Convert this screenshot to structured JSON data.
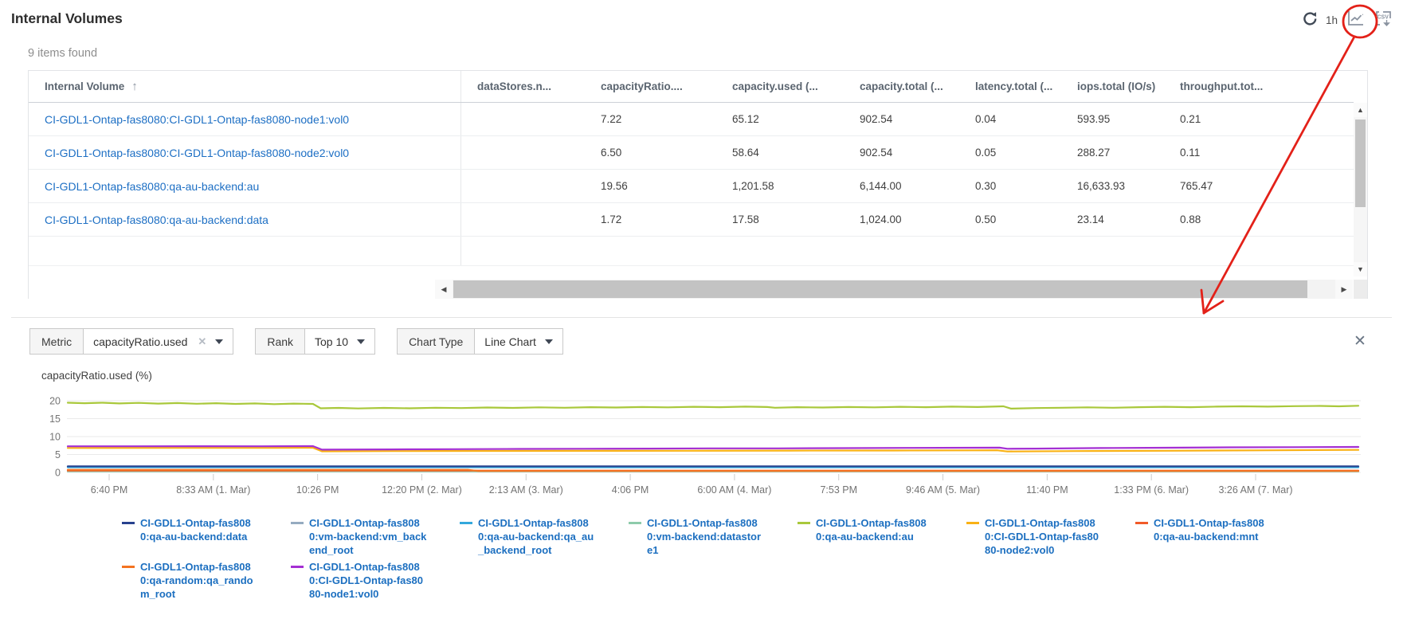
{
  "header": {
    "title": "Internal Volumes",
    "refresh_interval": "1h"
  },
  "table": {
    "items_found": "9 items found",
    "columns": [
      "Internal Volume",
      "dataStores.n...",
      "capacityRatio....",
      "capacity.used (...",
      "capacity.total (...",
      "latency.total (...",
      "iops.total (IO/s)",
      "throughput.tot..."
    ],
    "sort_column": "Internal Volume",
    "sort_direction": "asc",
    "rows": [
      {
        "name": "CI-GDL1-Ontap-fas8080:CI-GDL1-Ontap-fas8080-node1:vol0",
        "values": [
          "",
          "7.22",
          "65.12",
          "902.54",
          "0.04",
          "593.95",
          "0.21"
        ]
      },
      {
        "name": "CI-GDL1-Ontap-fas8080:CI-GDL1-Ontap-fas8080-node2:vol0",
        "values": [
          "",
          "6.50",
          "58.64",
          "902.54",
          "0.05",
          "288.27",
          "0.11"
        ]
      },
      {
        "name": "CI-GDL1-Ontap-fas8080:qa-au-backend:au",
        "values": [
          "",
          "19.56",
          "1,201.58",
          "6,144.00",
          "0.30",
          "16,633.93",
          "765.47"
        ]
      },
      {
        "name": "CI-GDL1-Ontap-fas8080:qa-au-backend:data",
        "values": [
          "",
          "1.72",
          "17.58",
          "1,024.00",
          "0.50",
          "23.14",
          "0.88"
        ]
      }
    ]
  },
  "controls": {
    "metric_label": "Metric",
    "metric_value": "capacityRatio.used",
    "rank_label": "Rank",
    "rank_value": "Top 10",
    "chart_type_label": "Chart Type",
    "chart_type_value": "Line Chart"
  },
  "chart_data": {
    "type": "line",
    "ylabel": "capacityRatio.used (%)",
    "ylim": [
      0,
      20
    ],
    "yticks": [
      0,
      5,
      10,
      15,
      20
    ],
    "grid": true,
    "legend_position": "bottom",
    "x_tick_labels": [
      "6:40 PM",
      "8:33 AM (1. Mar)",
      "10:26 PM",
      "12:20 PM (2. Mar)",
      "2:13 AM (3. Mar)",
      "4:06 PM",
      "6:00 AM (4. Mar)",
      "7:53 PM",
      "9:46 AM (5. Mar)",
      "11:40 PM",
      "1:33 PM (6. Mar)",
      "3:26 AM (7. Mar)"
    ],
    "series": [
      {
        "name": "CI-GDL1-Ontap-fas8080:vm-backend:datastore1",
        "color": "#8ecbab",
        "points": [
          [
            0,
            0.3
          ],
          [
            1,
            0.3
          ]
        ]
      },
      {
        "name": "CI-GDL1-Ontap-fas8080:qa-au-backend:mnt",
        "color": "#f15a29",
        "points": [
          [
            0,
            0.52
          ],
          [
            1,
            0.52
          ]
        ]
      },
      {
        "name": "CI-GDL1-Ontap-fas8080:qa-random:qa_random_root",
        "color": "#f47321",
        "points": [
          [
            0,
            0.74
          ],
          [
            0.31,
            0.74
          ],
          [
            0.318,
            0.4
          ],
          [
            1,
            0.4
          ]
        ]
      },
      {
        "name": "CI-GDL1-Ontap-fas8080:vm-backend:vm_backend_root",
        "color": "#95abc0",
        "points": [
          [
            0,
            1.58
          ],
          [
            1,
            1.58
          ]
        ]
      },
      {
        "name": "CI-GDL1-Ontap-fas8080:qa-au-backend:qa_au_backend_root",
        "color": "#33a8dc",
        "points": [
          [
            0,
            1.44
          ],
          [
            1,
            1.44
          ]
        ]
      },
      {
        "name": "CI-GDL1-Ontap-fas8080:qa-au-backend:data",
        "color": "#27418e",
        "points": [
          [
            0,
            1.72
          ],
          [
            1,
            1.72
          ]
        ]
      },
      {
        "name": "CI-GDL1-Ontap-fas8080:CI-GDL1-Ontap-fas8080-node2:vol0",
        "color": "#f9b115",
        "points": [
          [
            0,
            6.82
          ],
          [
            0.08,
            6.85
          ],
          [
            0.16,
            6.85
          ],
          [
            0.19,
            6.88
          ],
          [
            0.197,
            5.9
          ],
          [
            0.25,
            5.95
          ],
          [
            0.32,
            6.0
          ],
          [
            0.4,
            6.02
          ],
          [
            0.48,
            6.05
          ],
          [
            0.56,
            6.08
          ],
          [
            0.64,
            6.12
          ],
          [
            0.7,
            6.15
          ],
          [
            0.72,
            6.18
          ],
          [
            0.728,
            5.85
          ],
          [
            0.78,
            5.95
          ],
          [
            0.85,
            6.05
          ],
          [
            0.92,
            6.15
          ],
          [
            1,
            6.28
          ]
        ]
      },
      {
        "name": "CI-GDL1-Ontap-fas8080:CI-GDL1-Ontap-fas8080-node1:vol0",
        "color": "#a42fd3",
        "points": [
          [
            0,
            7.3
          ],
          [
            0.05,
            7.3
          ],
          [
            0.1,
            7.32
          ],
          [
            0.15,
            7.3
          ],
          [
            0.19,
            7.33
          ],
          [
            0.197,
            6.35
          ],
          [
            0.25,
            6.42
          ],
          [
            0.3,
            6.5
          ],
          [
            0.35,
            6.55
          ],
          [
            0.4,
            6.6
          ],
          [
            0.45,
            6.65
          ],
          [
            0.5,
            6.7
          ],
          [
            0.55,
            6.72
          ],
          [
            0.6,
            6.78
          ],
          [
            0.65,
            6.85
          ],
          [
            0.7,
            6.9
          ],
          [
            0.722,
            6.92
          ],
          [
            0.728,
            6.6
          ],
          [
            0.75,
            6.65
          ],
          [
            0.8,
            6.8
          ],
          [
            0.85,
            6.9
          ],
          [
            0.9,
            7.0
          ],
          [
            0.95,
            7.05
          ],
          [
            1,
            7.12
          ]
        ]
      },
      {
        "name": "CI-GDL1-Ontap-fas8080:qa-au-backend:au",
        "color": "#a9c83b",
        "points": [
          [
            0,
            19.45
          ],
          [
            0.013,
            19.3
          ],
          [
            0.027,
            19.45
          ],
          [
            0.04,
            19.25
          ],
          [
            0.055,
            19.4
          ],
          [
            0.07,
            19.2
          ],
          [
            0.085,
            19.35
          ],
          [
            0.1,
            19.15
          ],
          [
            0.115,
            19.3
          ],
          [
            0.13,
            19.1
          ],
          [
            0.145,
            19.25
          ],
          [
            0.16,
            19.05
          ],
          [
            0.175,
            19.2
          ],
          [
            0.19,
            19.1
          ],
          [
            0.196,
            17.9
          ],
          [
            0.21,
            18.0
          ],
          [
            0.225,
            17.85
          ],
          [
            0.245,
            18.0
          ],
          [
            0.265,
            17.9
          ],
          [
            0.285,
            18.05
          ],
          [
            0.305,
            17.95
          ],
          [
            0.325,
            18.1
          ],
          [
            0.345,
            18.0
          ],
          [
            0.365,
            18.15
          ],
          [
            0.385,
            18.05
          ],
          [
            0.405,
            18.2
          ],
          [
            0.425,
            18.1
          ],
          [
            0.445,
            18.25
          ],
          [
            0.465,
            18.15
          ],
          [
            0.485,
            18.3
          ],
          [
            0.505,
            18.2
          ],
          [
            0.525,
            18.35
          ],
          [
            0.542,
            18.25
          ],
          [
            0.548,
            18.05
          ],
          [
            0.565,
            18.2
          ],
          [
            0.585,
            18.1
          ],
          [
            0.605,
            18.25
          ],
          [
            0.625,
            18.15
          ],
          [
            0.645,
            18.3
          ],
          [
            0.665,
            18.2
          ],
          [
            0.685,
            18.35
          ],
          [
            0.705,
            18.25
          ],
          [
            0.725,
            18.45
          ],
          [
            0.731,
            17.8
          ],
          [
            0.75,
            17.95
          ],
          [
            0.77,
            18.05
          ],
          [
            0.79,
            18.15
          ],
          [
            0.81,
            18.05
          ],
          [
            0.83,
            18.2
          ],
          [
            0.85,
            18.3
          ],
          [
            0.87,
            18.2
          ],
          [
            0.89,
            18.35
          ],
          [
            0.91,
            18.45
          ],
          [
            0.93,
            18.35
          ],
          [
            0.95,
            18.5
          ],
          [
            0.97,
            18.55
          ],
          [
            0.985,
            18.45
          ],
          [
            1,
            18.6
          ]
        ]
      }
    ],
    "legend_display_order": [
      5,
      3,
      4,
      0,
      8,
      6,
      1,
      2,
      7
    ]
  },
  "annotation": {
    "color": "#e32119",
    "shape": "circle-and-arrow",
    "target": "line-chart-toggle-icon"
  }
}
